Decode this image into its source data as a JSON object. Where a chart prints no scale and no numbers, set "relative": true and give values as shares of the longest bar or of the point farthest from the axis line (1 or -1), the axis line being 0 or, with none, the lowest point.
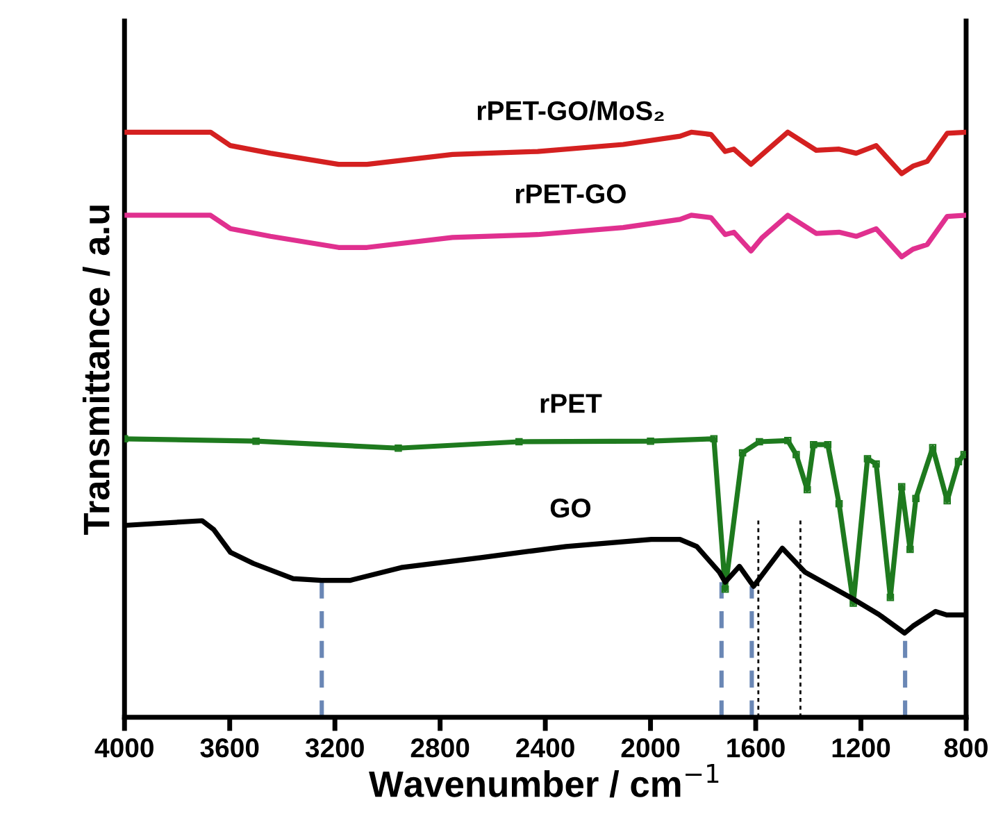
{
  "chart_data": {
    "type": "line",
    "relative": true,
    "xlabel": "Wavenumber / cm$^{−1}$",
    "ylabel": "Transmittance / a.u",
    "xlim": [
      4000,
      800
    ],
    "xticks": [
      4000,
      3600,
      3200,
      2800,
      2400,
      2000,
      1600,
      1200,
      800
    ],
    "grid": false,
    "legend": false,
    "series": [
      {
        "name": "rPET-GO/MoS₂",
        "color": "#d42020",
        "x": [
          4000,
          3673,
          3597,
          3445,
          3186,
          3078,
          2753,
          2429,
          2104,
          1888,
          1845,
          1770,
          1716,
          1683,
          1618,
          1575,
          1478,
          1370,
          1283,
          1218,
          1142,
          1045,
          1002,
          948,
          872,
          800
        ],
        "values": [
          1.0,
          1.0,
          0.977,
          0.964,
          0.945,
          0.945,
          0.962,
          0.967,
          0.979,
          0.993,
          1.0,
          0.996,
          0.967,
          0.971,
          0.945,
          0.962,
          1.0,
          0.969,
          0.971,
          0.964,
          0.977,
          0.929,
          0.942,
          0.95,
          0.998,
          1.0
        ]
      },
      {
        "name": "rPET-GO",
        "color": "#e0308f",
        "x": [
          4000,
          3673,
          3597,
          3445,
          3186,
          3078,
          2753,
          2429,
          2104,
          1888,
          1845,
          1770,
          1716,
          1683,
          1618,
          1575,
          1478,
          1370,
          1283,
          1218,
          1142,
          1045,
          1002,
          948,
          872,
          800
        ],
        "values": [
          0.858,
          0.858,
          0.835,
          0.822,
          0.803,
          0.803,
          0.82,
          0.825,
          0.837,
          0.851,
          0.858,
          0.854,
          0.825,
          0.829,
          0.797,
          0.82,
          0.858,
          0.827,
          0.829,
          0.822,
          0.835,
          0.787,
          0.8,
          0.808,
          0.856,
          0.858
        ]
      },
      {
        "name": "rPET",
        "color": "#1e7a1e",
        "marker": "square",
        "x": [
          4000,
          3500,
          2959,
          2500,
          2000,
          1759,
          1716,
          1650,
          1586,
          1478,
          1446,
          1404,
          1380,
          1326,
          1283,
          1229,
          1175,
          1142,
          1088,
          1045,
          1013,
          991,
          927,
          872,
          829,
          808
        ],
        "values": [
          0.476,
          0.472,
          0.46,
          0.471,
          0.472,
          0.476,
          0.219,
          0.452,
          0.471,
          0.473,
          0.449,
          0.389,
          0.466,
          0.466,
          0.365,
          0.195,
          0.442,
          0.433,
          0.205,
          0.394,
          0.287,
          0.374,
          0.461,
          0.37,
          0.437,
          0.449
        ]
      },
      {
        "name": "GO",
        "color": "#000000",
        "x": [
          4000,
          3705,
          3661,
          3597,
          3510,
          3359,
          3251,
          3143,
          2948,
          2645,
          2321,
          1997,
          1888,
          1824,
          1738,
          1716,
          1662,
          1608,
          1499,
          1412,
          1240,
          1132,
          1034,
          1002,
          916,
          874,
          800
        ],
        "values": [
          0.328,
          0.336,
          0.321,
          0.282,
          0.263,
          0.237,
          0.234,
          0.234,
          0.256,
          0.273,
          0.292,
          0.304,
          0.304,
          0.292,
          0.248,
          0.231,
          0.258,
          0.224,
          0.289,
          0.248,
          0.205,
          0.176,
          0.144,
          0.156,
          0.181,
          0.175,
          0.175
        ]
      },
      {
        "type": "line",
        "line_style": "dashed",
        "color": "#6a87b5",
        "x": [
          3250,
          3250
        ],
        "values": [
          0,
          0.234
        ]
      },
      {
        "type": "line",
        "line_style": "dashed",
        "color": "#6a87b5",
        "x": [
          1730,
          1730
        ],
        "values": [
          0,
          0.231
        ]
      },
      {
        "type": "line",
        "line_style": "dashed",
        "color": "#6a87b5",
        "x": [
          1615,
          1615
        ],
        "values": [
          0,
          0.224
        ]
      },
      {
        "type": "line",
        "line_style": "dashed",
        "color": "#6a87b5",
        "x": [
          1032,
          1032
        ],
        "values": [
          0,
          0.144
        ]
      },
      {
        "type": "line",
        "line_style": "dotted",
        "color": "#000000",
        "x": [
          1590,
          1590
        ],
        "values": [
          0,
          0.34
        ]
      },
      {
        "type": "line",
        "line_style": "dotted",
        "color": "#000000",
        "x": [
          1430,
          1430
        ],
        "values": [
          0,
          0.34
        ]
      }
    ]
  }
}
